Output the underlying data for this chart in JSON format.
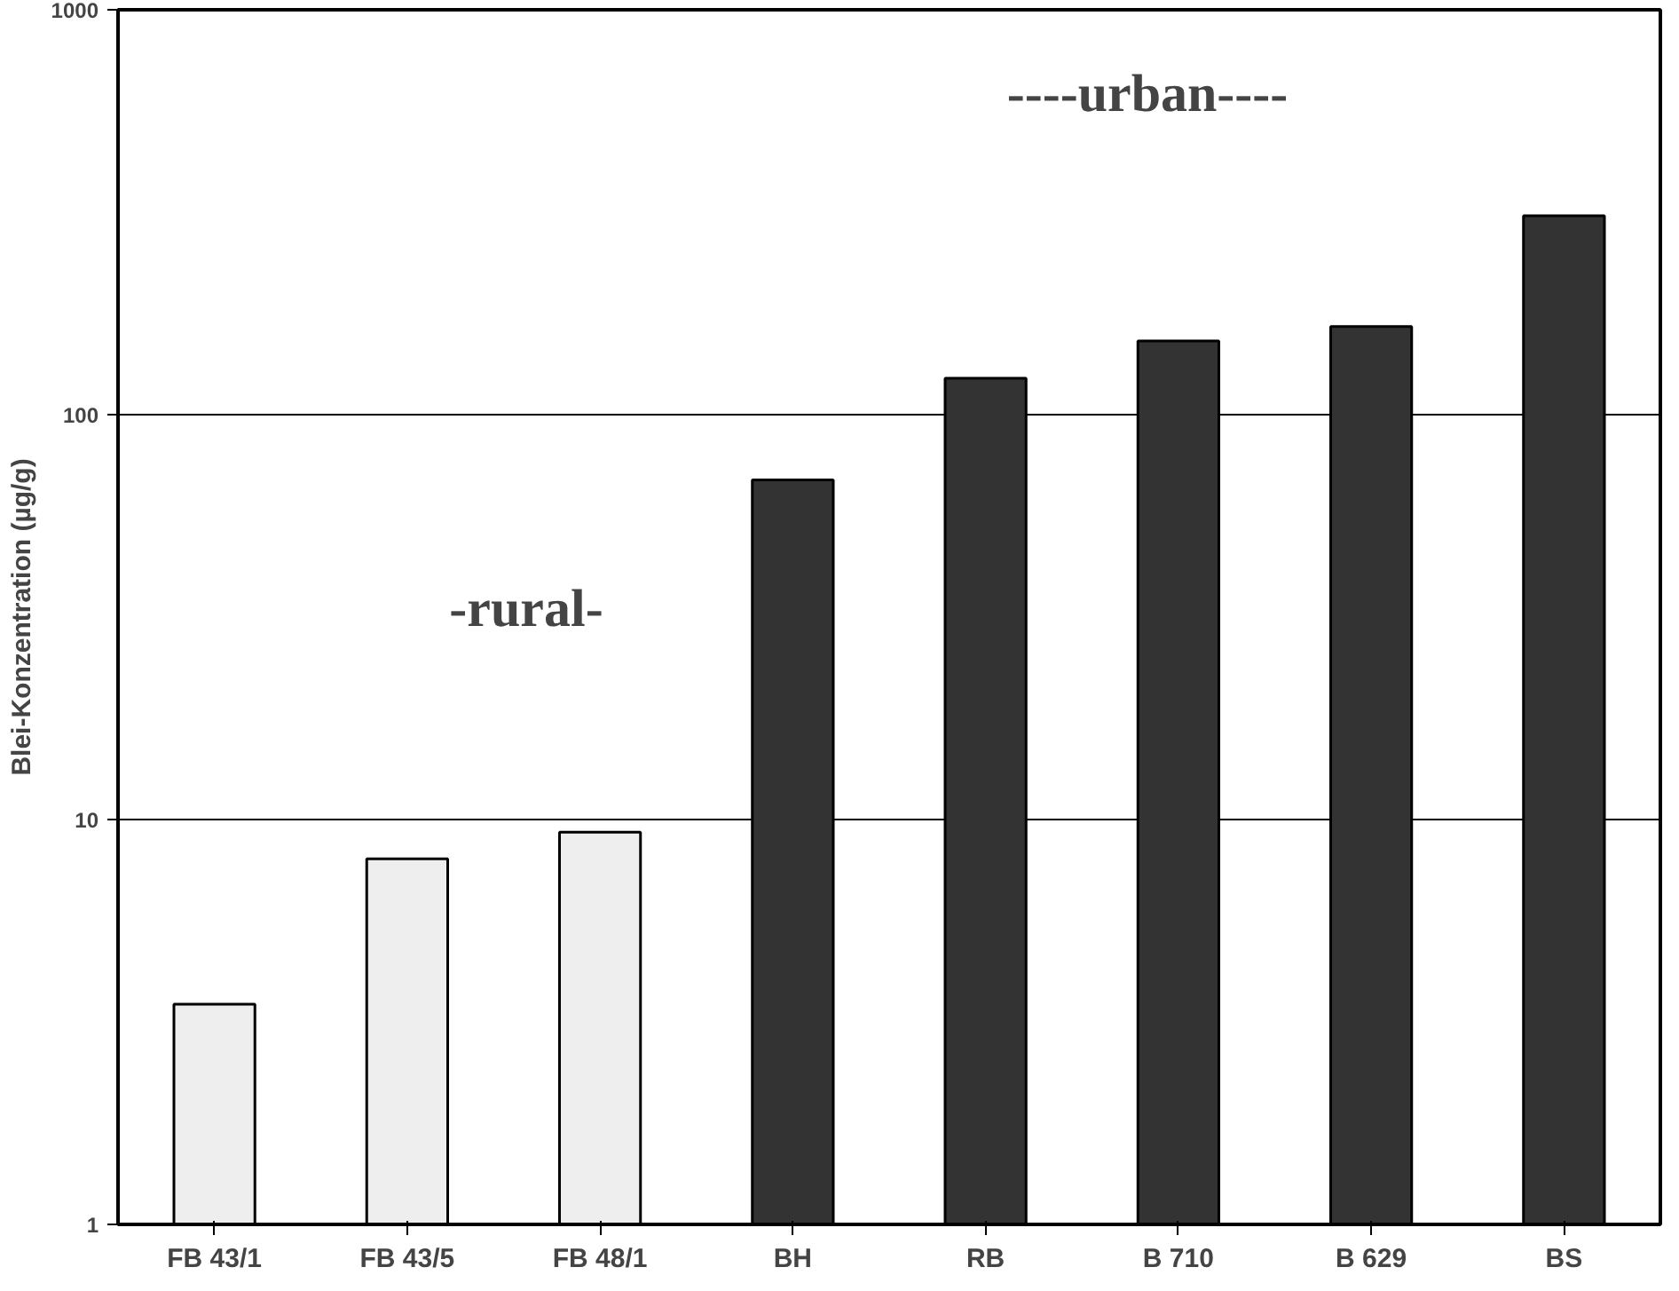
{
  "chart_data": {
    "type": "bar",
    "categories": [
      "FB 43/1",
      "FB 43/5",
      "FB 48/1",
      "BH",
      "RB",
      "B 710",
      "B 629",
      "BS"
    ],
    "values": [
      3.5,
      8,
      9.3,
      69,
      123,
      152,
      165,
      310
    ],
    "colors": [
      "#eeeeee",
      "#eeeeee",
      "#eeeeee",
      "#333333",
      "#333333",
      "#333333",
      "#333333",
      "#333333"
    ],
    "ylabel": "Blei-Konzentration (µg/g)",
    "log": true,
    "ylim": [
      1,
      1000
    ],
    "yticks": [
      1,
      10,
      100,
      1000
    ],
    "grid": "y",
    "annotations": [
      "-rural-",
      "----urban----"
    ]
  }
}
